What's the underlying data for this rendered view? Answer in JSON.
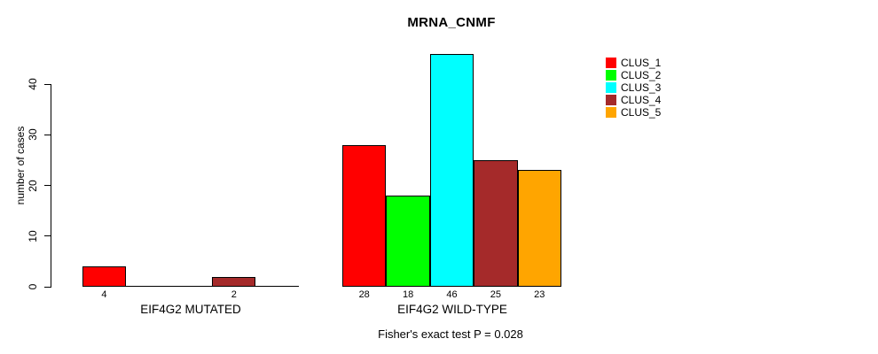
{
  "chart_data": {
    "type": "bar",
    "title": "MRNA_CNMF",
    "ylabel": "number of cases",
    "yticks": [
      0,
      10,
      20,
      30,
      40
    ],
    "ylim": [
      0,
      46
    ],
    "grid": false,
    "legend_position": "right",
    "series": [
      {
        "name": "CLUS_1",
        "color": "#FF0000"
      },
      {
        "name": "CLUS_2",
        "color": "#00FF00"
      },
      {
        "name": "CLUS_3",
        "color": "#00FFFF"
      },
      {
        "name": "CLUS_4",
        "color": "#A52A2A"
      },
      {
        "name": "CLUS_5",
        "color": "#FFA500"
      }
    ],
    "groups": [
      {
        "label": "EIF4G2 MUTATED",
        "values": [
          4,
          0,
          0,
          2,
          0
        ]
      },
      {
        "label": "EIF4G2 WILD-TYPE",
        "values": [
          28,
          18,
          46,
          25,
          23
        ]
      }
    ],
    "footnote": "Fisher's exact test P = 0.028"
  }
}
